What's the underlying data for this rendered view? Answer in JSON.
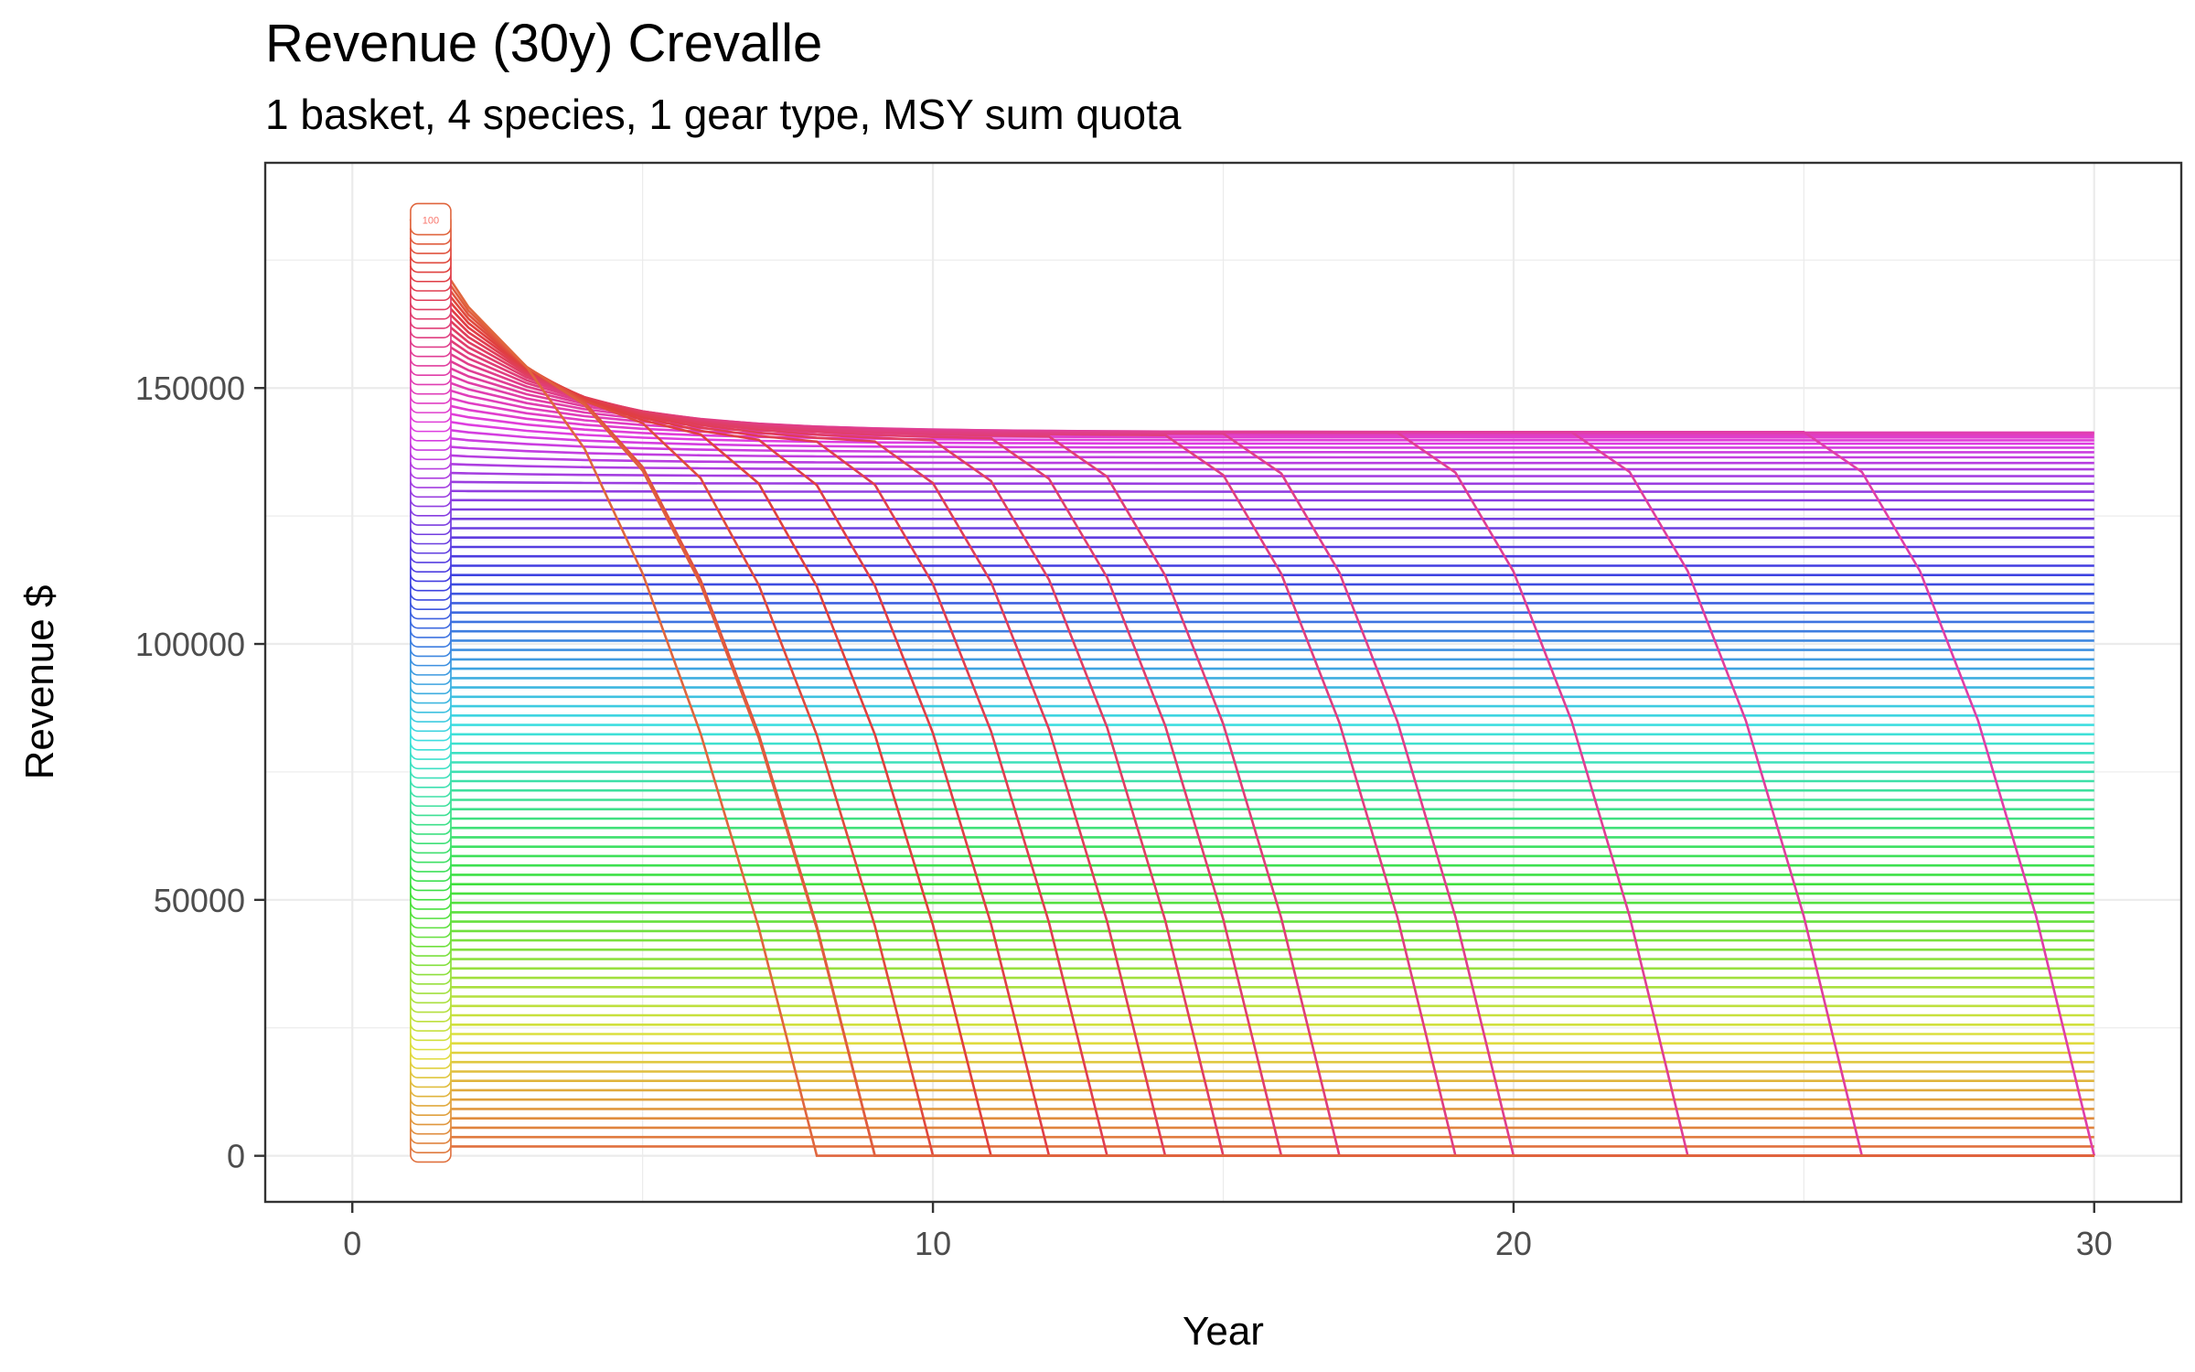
{
  "chart_data": {
    "type": "line",
    "title": "Revenue (30y) Crevalle",
    "subtitle": "1 basket, 4 species, 1 gear type, MSY sum quota",
    "xlabel": "Year",
    "ylabel": "Revenue $",
    "xlim": [
      -1.5,
      31.5
    ],
    "ylim": [
      -9000,
      194000
    ],
    "x_ticks": [
      0,
      10,
      20,
      30
    ],
    "y_ticks": [
      0,
      50000,
      100000,
      150000
    ],
    "x_tick_labels": [
      "0",
      "10",
      "20",
      "30"
    ],
    "y_tick_labels": [
      "0",
      "50000",
      "100000",
      "150000"
    ],
    "grid": true,
    "legend": "none",
    "series_count": 100,
    "start_label_shown": "100",
    "start_year": 1,
    "end_year": 30,
    "palette": "hue",
    "series_model": {
      "description": "100 quota scenarios; each series starts at year 1 with revenue proportional to its index, lower indices plateau flat, higher indices decline and the highest ones collapse to zero between year 8 and year 30.",
      "start_revenue_max": 183000,
      "plateau_revenue_max": 127000,
      "collapse_years_for_top_series": [
        30,
        26,
        23,
        20,
        19,
        17,
        16,
        15,
        14,
        13,
        12,
        11,
        10,
        9,
        9,
        8
      ]
    }
  }
}
